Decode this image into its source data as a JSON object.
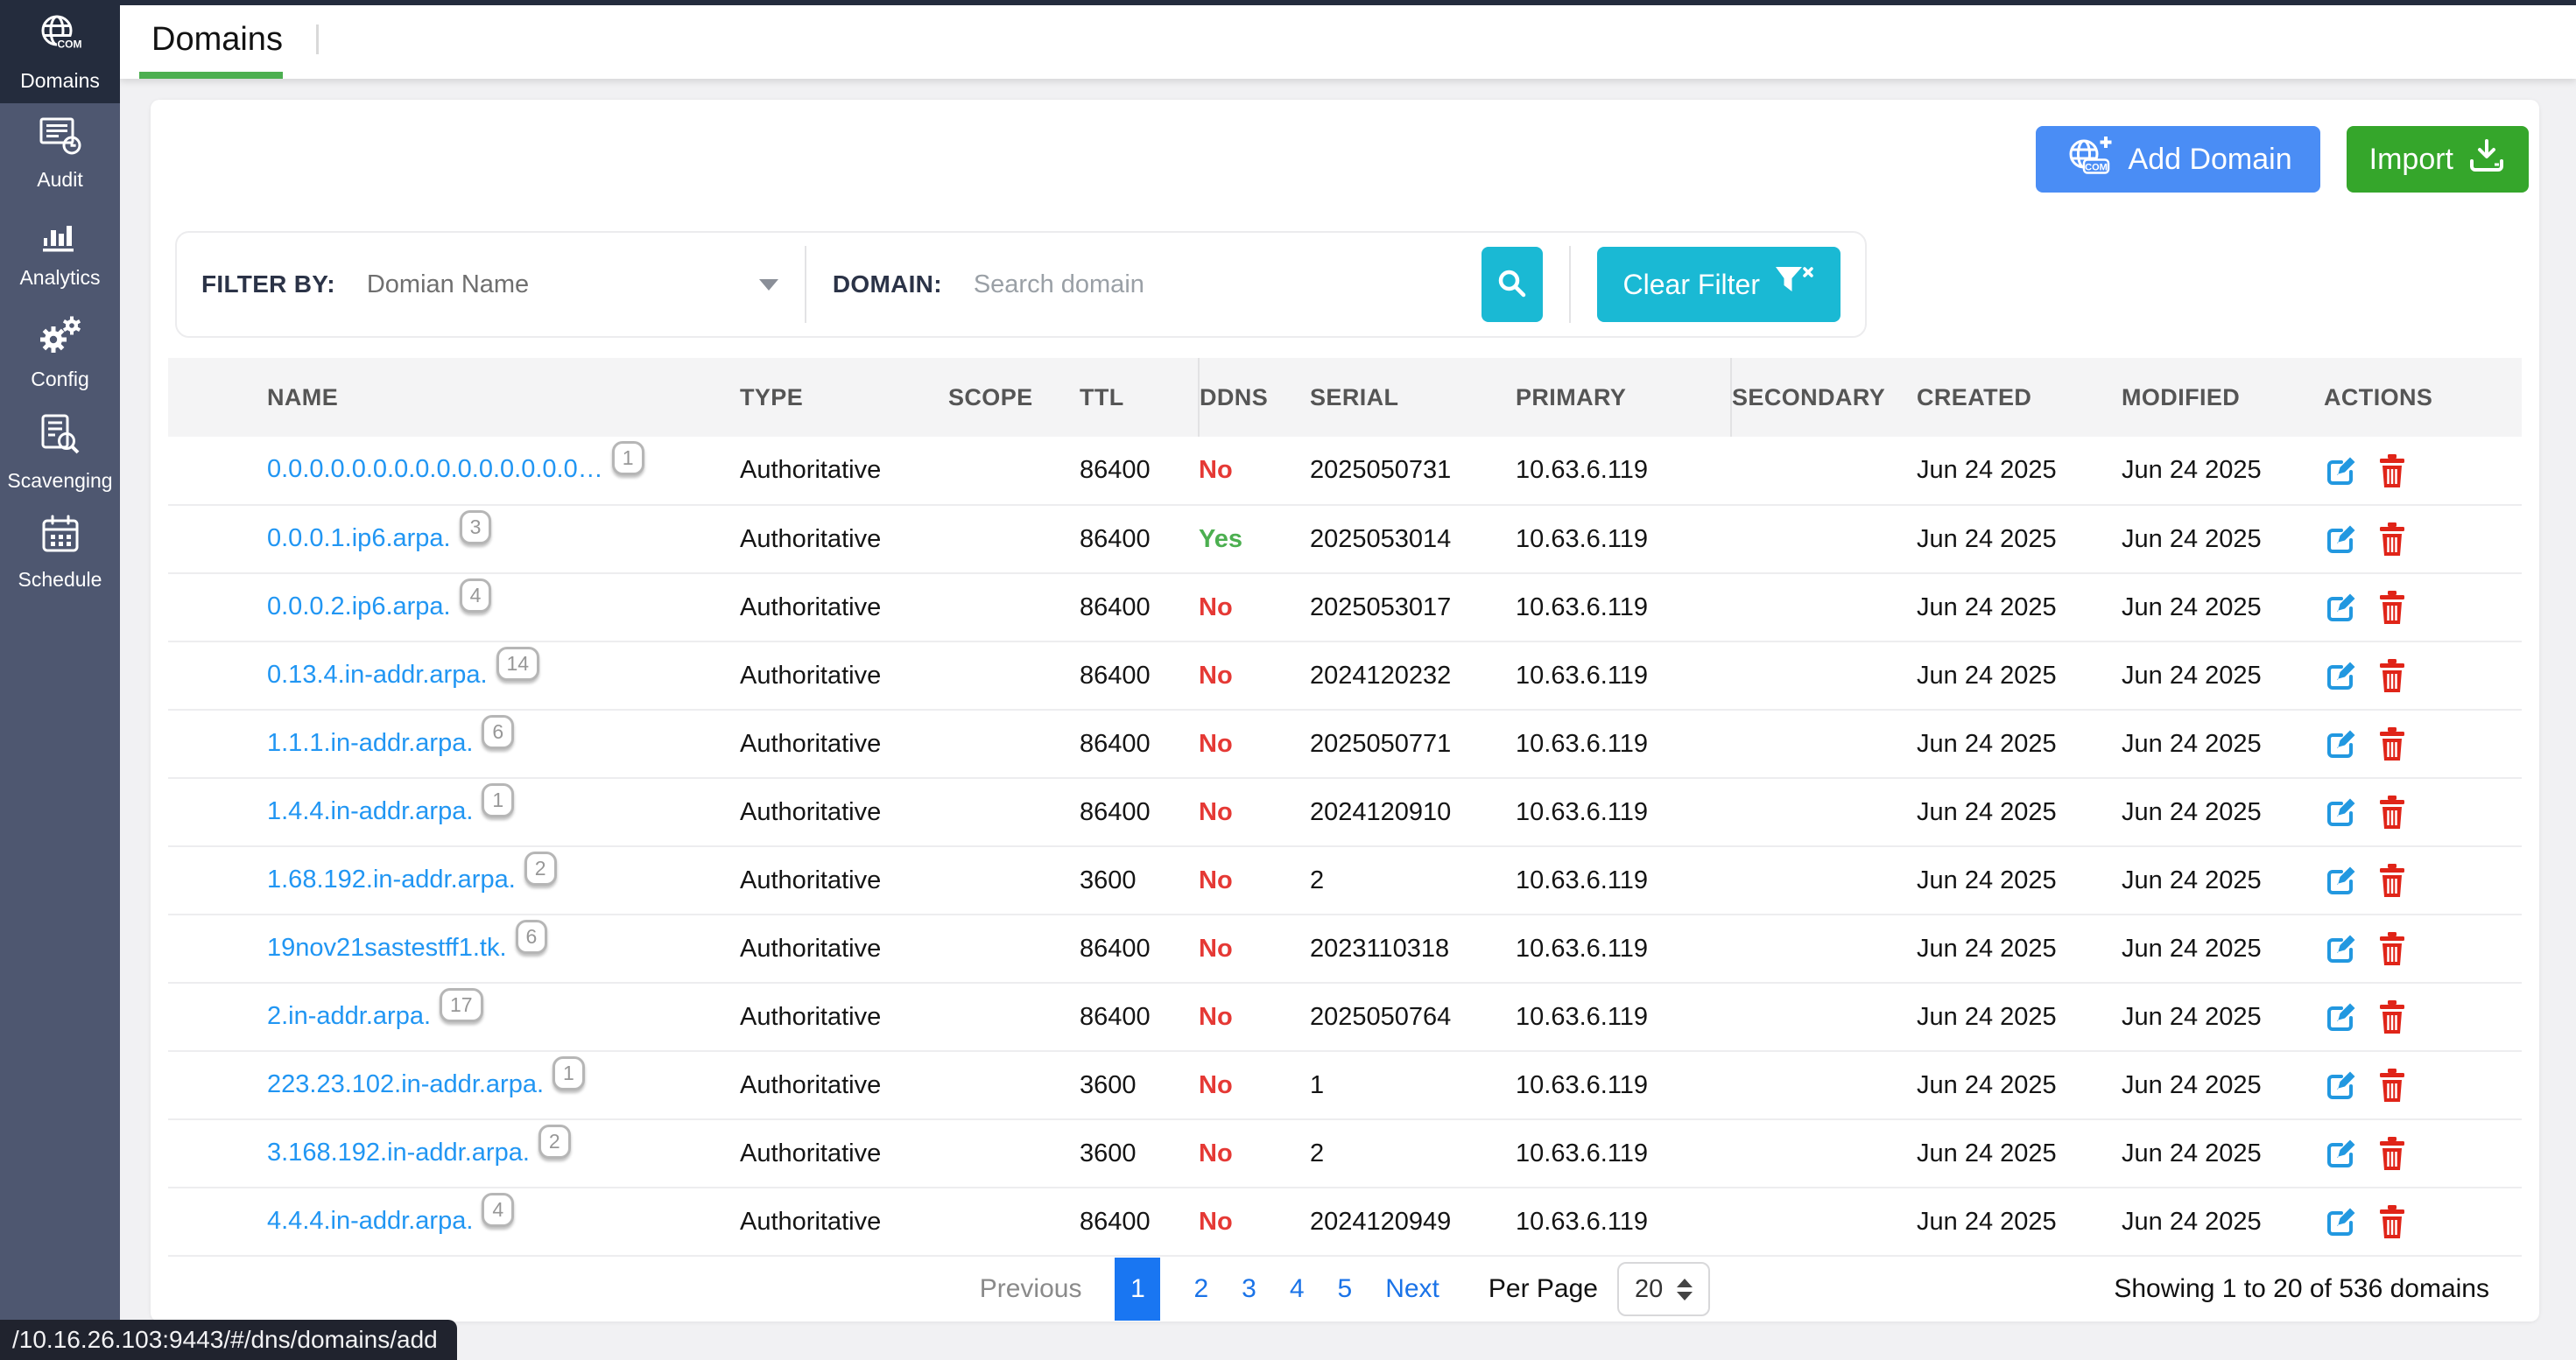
{
  "header": {
    "tab": "Domains"
  },
  "sidebar": {
    "items": [
      {
        "label": "Domains",
        "icon": "globe-com-icon",
        "active": true
      },
      {
        "label": "Audit",
        "icon": "audit-icon",
        "active": false
      },
      {
        "label": "Analytics",
        "icon": "analytics-icon",
        "active": false
      },
      {
        "label": "Config",
        "icon": "config-icon",
        "active": false
      },
      {
        "label": "Scavenging",
        "icon": "scavenging-icon",
        "active": false
      },
      {
        "label": "Schedule",
        "icon": "schedule-icon",
        "active": false
      }
    ]
  },
  "toolbar": {
    "add_domain_label": "Add Domain",
    "import_label": "Import"
  },
  "filter": {
    "filter_by_label": "FILTER BY:",
    "filter_by_value": "Domian Name",
    "domain_label": "DOMAIN:",
    "search_placeholder": "Search domain",
    "clear_filter_label": "Clear Filter"
  },
  "colors": {
    "accent_cyan": "#1ab9d4",
    "accent_blue": "#4a8df5",
    "accent_green": "#35a62b",
    "link_blue": "#2196f3",
    "ddns_no_red": "#e53935",
    "ddns_yes_green": "#4caf50",
    "tab_underline_green": "#4caf50",
    "sidebar_bg": "#4e5770",
    "sidebar_active_bg": "#242c3d"
  },
  "table": {
    "columns": [
      "NAME",
      "TYPE",
      "SCOPE",
      "TTL",
      "DDNS",
      "SERIAL",
      "PRIMARY",
      "SECONDARY",
      "CREATED",
      "MODIFIED",
      "ACTIONS"
    ],
    "rows": [
      {
        "name": "0.0.0.0.0.0.0.0.0.0.0.0.0.0.0…",
        "badge": "1",
        "type": "Authoritative",
        "scope": "",
        "ttl": "86400",
        "ddns": "No",
        "serial": "2025050731",
        "primary": "10.63.6.119",
        "secondary": "",
        "created": "Jun 24 2025",
        "modified": "Jun 24 2025"
      },
      {
        "name": "0.0.0.1.ip6.arpa.",
        "badge": "3",
        "type": "Authoritative",
        "scope": "",
        "ttl": "86400",
        "ddns": "Yes",
        "serial": "2025053014",
        "primary": "10.63.6.119",
        "secondary": "",
        "created": "Jun 24 2025",
        "modified": "Jun 24 2025"
      },
      {
        "name": "0.0.0.2.ip6.arpa.",
        "badge": "4",
        "type": "Authoritative",
        "scope": "",
        "ttl": "86400",
        "ddns": "No",
        "serial": "2025053017",
        "primary": "10.63.6.119",
        "secondary": "",
        "created": "Jun 24 2025",
        "modified": "Jun 24 2025"
      },
      {
        "name": "0.13.4.in-addr.arpa.",
        "badge": "14",
        "type": "Authoritative",
        "scope": "",
        "ttl": "86400",
        "ddns": "No",
        "serial": "2024120232",
        "primary": "10.63.6.119",
        "secondary": "",
        "created": "Jun 24 2025",
        "modified": "Jun 24 2025"
      },
      {
        "name": "1.1.1.in-addr.arpa.",
        "badge": "6",
        "type": "Authoritative",
        "scope": "",
        "ttl": "86400",
        "ddns": "No",
        "serial": "2025050771",
        "primary": "10.63.6.119",
        "secondary": "",
        "created": "Jun 24 2025",
        "modified": "Jun 24 2025"
      },
      {
        "name": "1.4.4.in-addr.arpa.",
        "badge": "1",
        "type": "Authoritative",
        "scope": "",
        "ttl": "86400",
        "ddns": "No",
        "serial": "2024120910",
        "primary": "10.63.6.119",
        "secondary": "",
        "created": "Jun 24 2025",
        "modified": "Jun 24 2025"
      },
      {
        "name": "1.68.192.in-addr.arpa.",
        "badge": "2",
        "type": "Authoritative",
        "scope": "",
        "ttl": "3600",
        "ddns": "No",
        "serial": "2",
        "primary": "10.63.6.119",
        "secondary": "",
        "created": "Jun 24 2025",
        "modified": "Jun 24 2025"
      },
      {
        "name": "19nov21sastestff1.tk.",
        "badge": "6",
        "type": "Authoritative",
        "scope": "",
        "ttl": "86400",
        "ddns": "No",
        "serial": "2023110318",
        "primary": "10.63.6.119",
        "secondary": "",
        "created": "Jun 24 2025",
        "modified": "Jun 24 2025"
      },
      {
        "name": "2.in-addr.arpa.",
        "badge": "17",
        "type": "Authoritative",
        "scope": "",
        "ttl": "86400",
        "ddns": "No",
        "serial": "2025050764",
        "primary": "10.63.6.119",
        "secondary": "",
        "created": "Jun 24 2025",
        "modified": "Jun 24 2025"
      },
      {
        "name": "223.23.102.in-addr.arpa.",
        "badge": "1",
        "type": "Authoritative",
        "scope": "",
        "ttl": "3600",
        "ddns": "No",
        "serial": "1",
        "primary": "10.63.6.119",
        "secondary": "",
        "created": "Jun 24 2025",
        "modified": "Jun 24 2025"
      },
      {
        "name": "3.168.192.in-addr.arpa.",
        "badge": "2",
        "type": "Authoritative",
        "scope": "",
        "ttl": "3600",
        "ddns": "No",
        "serial": "2",
        "primary": "10.63.6.119",
        "secondary": "",
        "created": "Jun 24 2025",
        "modified": "Jun 24 2025"
      },
      {
        "name": "4.4.4.in-addr.arpa.",
        "badge": "4",
        "type": "Authoritative",
        "scope": "",
        "ttl": "86400",
        "ddns": "No",
        "serial": "2024120949",
        "primary": "10.63.6.119",
        "secondary": "",
        "created": "Jun 24 2025",
        "modified": "Jun 24 2025"
      }
    ]
  },
  "pagination": {
    "previous": "Previous",
    "pages": [
      "1",
      "2",
      "3",
      "4",
      "5"
    ],
    "active_page": "1",
    "next": "Next",
    "per_page_label": "Per Page",
    "per_page_value": "20",
    "summary": "Showing 1 to 20 of 536 domains"
  },
  "statusbar": {
    "url": "/10.16.26.103:9443/#/dns/domains/add"
  }
}
